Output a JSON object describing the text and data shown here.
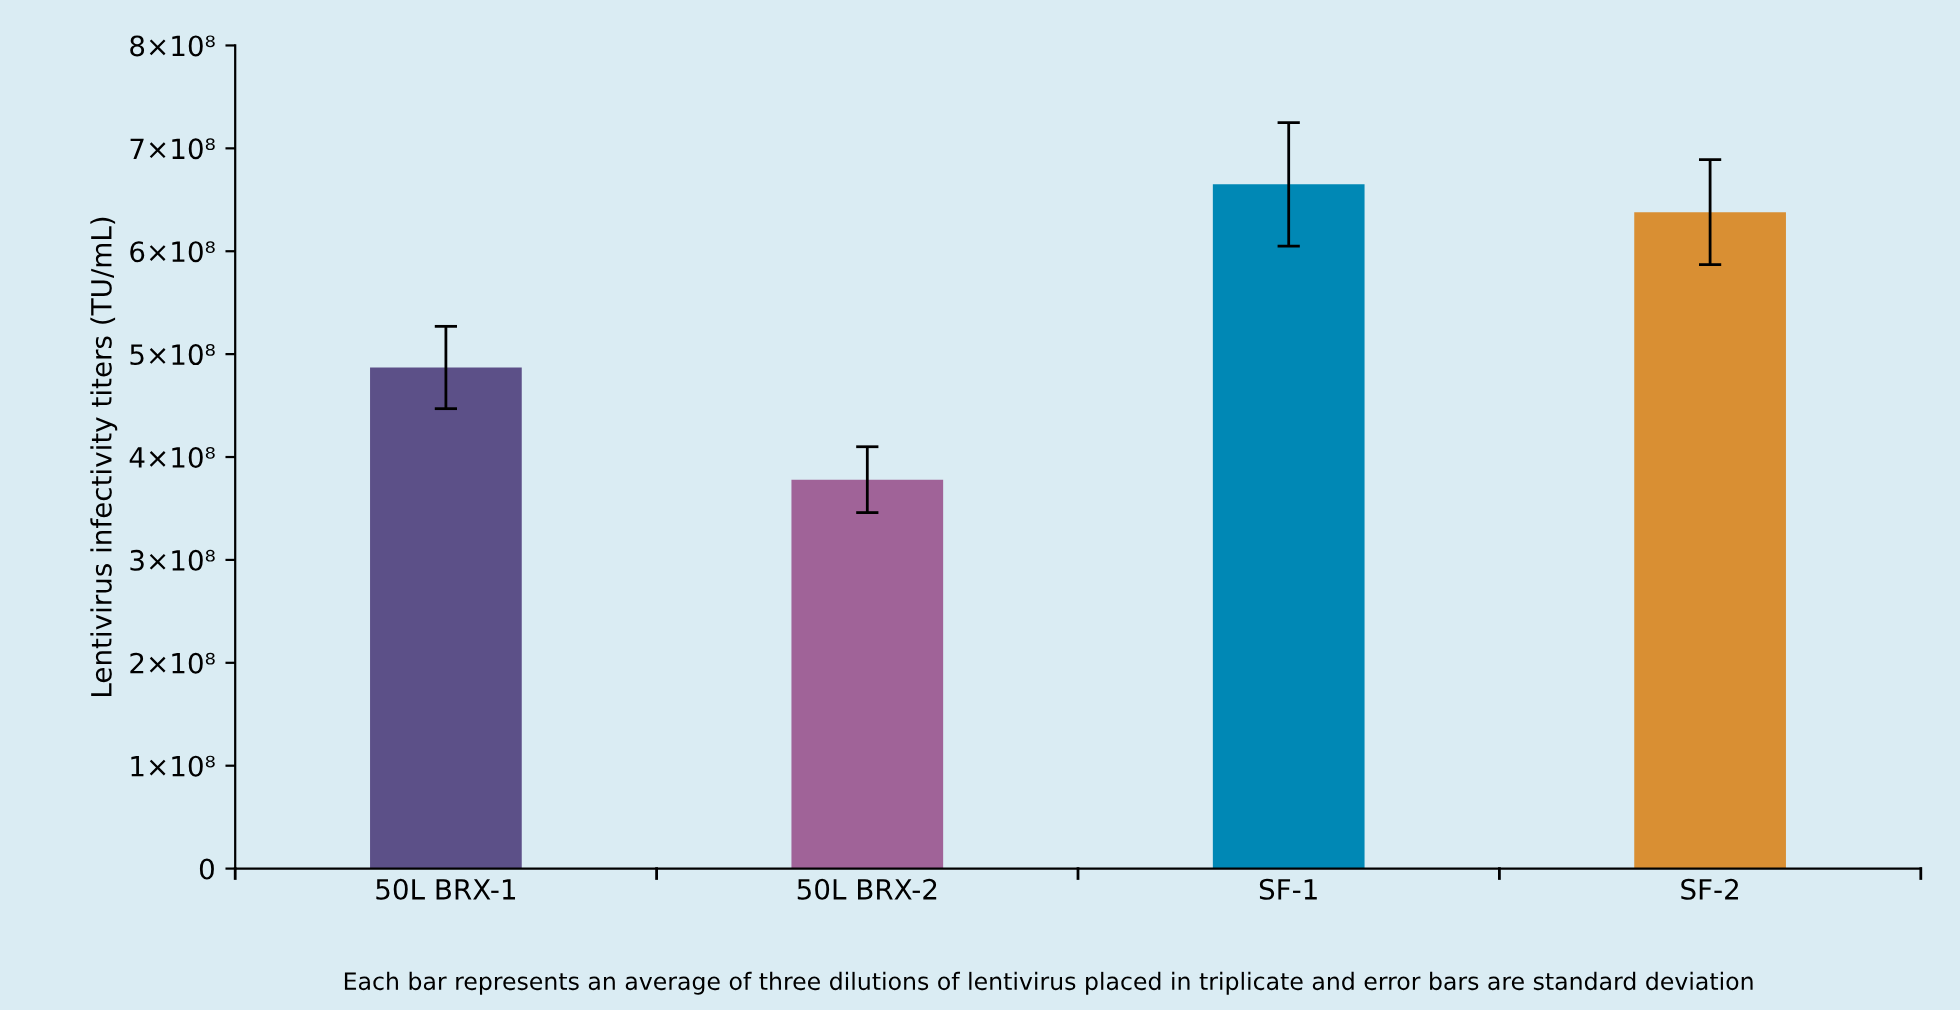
{
  "chart_data": {
    "type": "bar",
    "ylabel": "Lentivirus infectivity titers (TU/mL)",
    "categories": [
      "50L BRX-1",
      "50L BRX-2",
      "SF-1",
      "SF-2"
    ],
    "values": [
      487000000,
      378000000,
      665000000,
      638000000
    ],
    "errors": [
      40000000,
      32000000,
      60000000,
      51000000
    ],
    "colors": [
      "#5c5088",
      "#a06398",
      "#0088b5",
      "#d98f33"
    ],
    "ylim": [
      0,
      800000000
    ],
    "yticks": [
      {
        "value": 0,
        "label": "0"
      },
      {
        "value": 100000000,
        "label": "1×10⁸"
      },
      {
        "value": 200000000,
        "label": "2×10⁸"
      },
      {
        "value": 300000000,
        "label": "3×10⁸"
      },
      {
        "value": 400000000,
        "label": "4×10⁸"
      },
      {
        "value": 500000000,
        "label": "5×10⁸"
      },
      {
        "value": 600000000,
        "label": "6×10⁸"
      },
      {
        "value": 700000000,
        "label": "7×10⁸"
      },
      {
        "value": 800000000,
        "label": "8×10⁸"
      }
    ],
    "grid": false,
    "annotations": [
      "Each bar represents an average of three dilutions of lentivirus placed in triplicate and error bars are standard deviation"
    ]
  }
}
